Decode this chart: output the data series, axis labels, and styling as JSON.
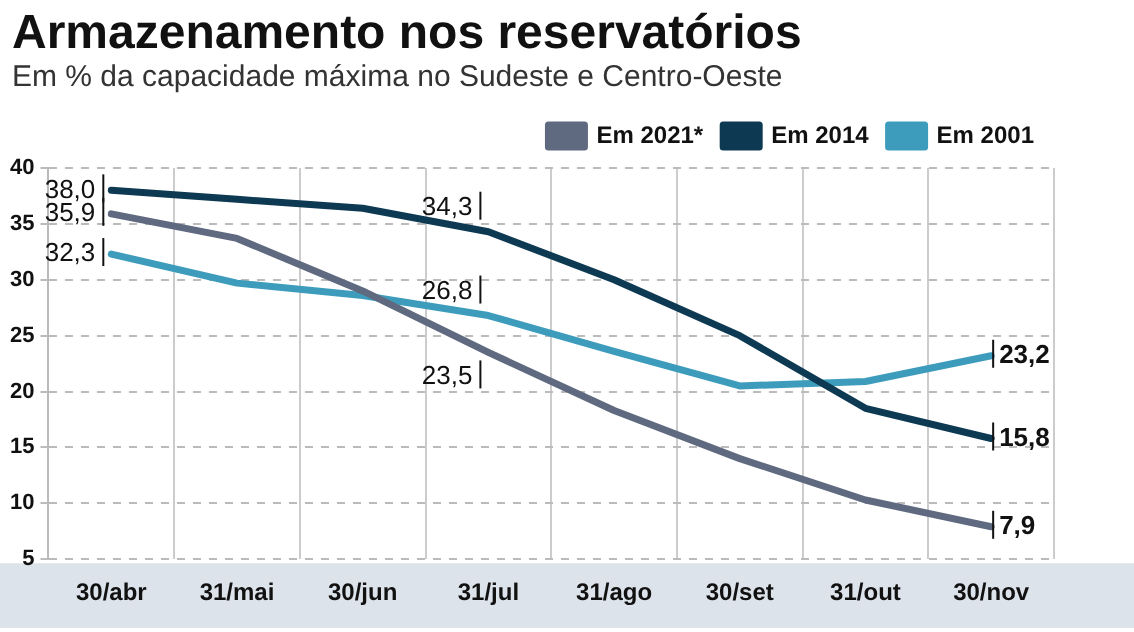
{
  "chart_data": {
    "type": "line",
    "title": "Armazenamento nos reservatórios",
    "subtitle": "Em % da capacidade máxima no Sudeste e Centro-Oeste",
    "categories": [
      "30/abr",
      "31/mai",
      "30/jun",
      "31/jul",
      "31/ago",
      "30/set",
      "31/out",
      "30/nov"
    ],
    "series": [
      {
        "name": "Em 2021*",
        "color": "#5f6a80",
        "values": [
          35.9,
          33.7,
          29.0,
          23.5,
          18.3,
          14.0,
          10.3,
          7.9
        ],
        "value_labels": [
          "35,9",
          null,
          null,
          "23,5",
          null,
          null,
          null,
          "7,9"
        ]
      },
      {
        "name": "Em 2014",
        "color": "#0d3a52",
        "values": [
          38.0,
          37.2,
          36.4,
          34.3,
          30.0,
          25.0,
          18.5,
          15.8
        ],
        "value_labels": [
          "38,0",
          null,
          null,
          "34,3",
          null,
          null,
          null,
          "15,8"
        ]
      },
      {
        "name": "Em 2001",
        "color": "#3d9cbc",
        "values": [
          32.3,
          29.7,
          28.6,
          26.8,
          23.6,
          20.5,
          20.9,
          23.2
        ],
        "value_labels": [
          "32,3",
          null,
          null,
          "26,8",
          null,
          null,
          null,
          "23,2"
        ]
      }
    ],
    "ylim": [
      5,
      40
    ],
    "yticks": [
      5,
      10,
      15,
      20,
      25,
      30,
      35,
      40
    ],
    "grid": true,
    "legend": "top right",
    "marker": "none",
    "line_style": "solid"
  }
}
